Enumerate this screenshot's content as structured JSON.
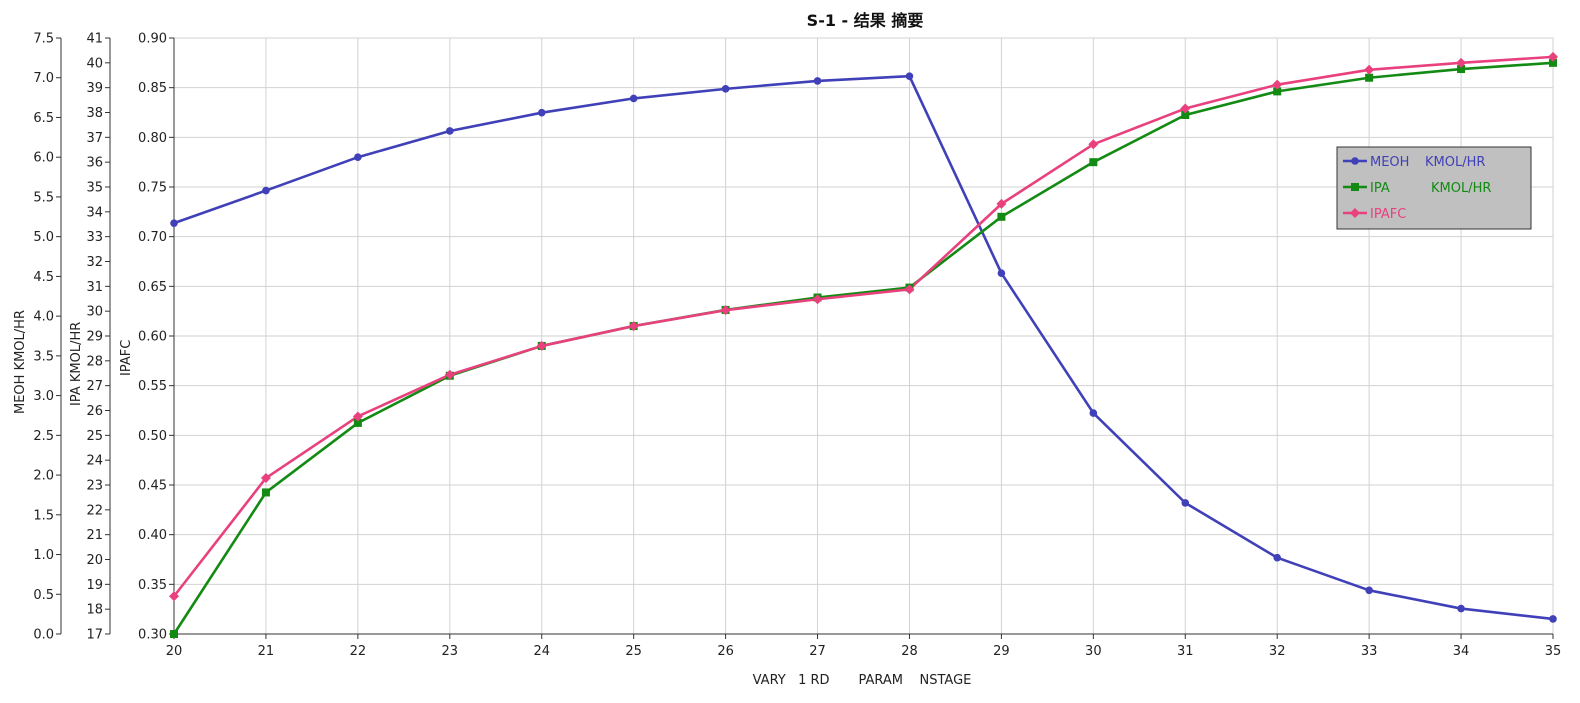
{
  "chart_data": {
    "type": "line",
    "title": "S-1 - 结果 摘要",
    "xlabel": "VARY   1 RD       PARAM    NSTAGE",
    "xlim": [
      20,
      35
    ],
    "x": [
      20,
      21,
      22,
      23,
      24,
      25,
      26,
      27,
      28,
      29,
      30,
      31,
      32,
      33,
      34,
      35
    ],
    "grid": true,
    "legend_position": "right",
    "y_axes": [
      {
        "id": "meoh",
        "label_lines": [
          "MEOH",
          "KMOL/HR"
        ],
        "ylim": [
          0.0,
          7.5
        ],
        "step": 0.5,
        "decimals": 1
      },
      {
        "id": "ipa",
        "label_lines": [
          "IPA",
          "KMOL/HR"
        ],
        "ylim": [
          17,
          41
        ],
        "step": 1,
        "decimals": 0
      },
      {
        "id": "ipafc",
        "label_lines": [
          "IPAFC"
        ],
        "ylim": [
          0.3,
          0.9
        ],
        "step": 0.05,
        "decimals": 2
      }
    ],
    "series": [
      {
        "name": "MEOH",
        "unit": "KMOL/HR",
        "axis": "meoh",
        "color": "#4040b8",
        "marker": "circle",
        "values": [
          5.17,
          5.58,
          6.0,
          6.33,
          6.56,
          6.74,
          6.86,
          6.96,
          7.02,
          4.54,
          2.78,
          1.65,
          0.96,
          0.55,
          0.32,
          0.19
        ]
      },
      {
        "name": "IPA",
        "unit": "KMOL/HR",
        "axis": "ipa",
        "color": "#138a13",
        "marker": "square",
        "values": [
          17.0,
          22.7,
          25.5,
          27.4,
          28.6,
          29.4,
          30.05,
          30.55,
          30.95,
          33.8,
          36.0,
          37.9,
          38.85,
          39.4,
          39.75,
          40.0
        ]
      },
      {
        "name": "IPAFC",
        "unit": "",
        "axis": "ipafc",
        "color": "#e8417e",
        "marker": "diamond",
        "values": [
          0.338,
          0.457,
          0.519,
          0.561,
          0.59,
          0.61,
          0.626,
          0.637,
          0.647,
          0.733,
          0.793,
          0.829,
          0.853,
          0.868,
          0.875,
          0.881
        ]
      }
    ]
  }
}
